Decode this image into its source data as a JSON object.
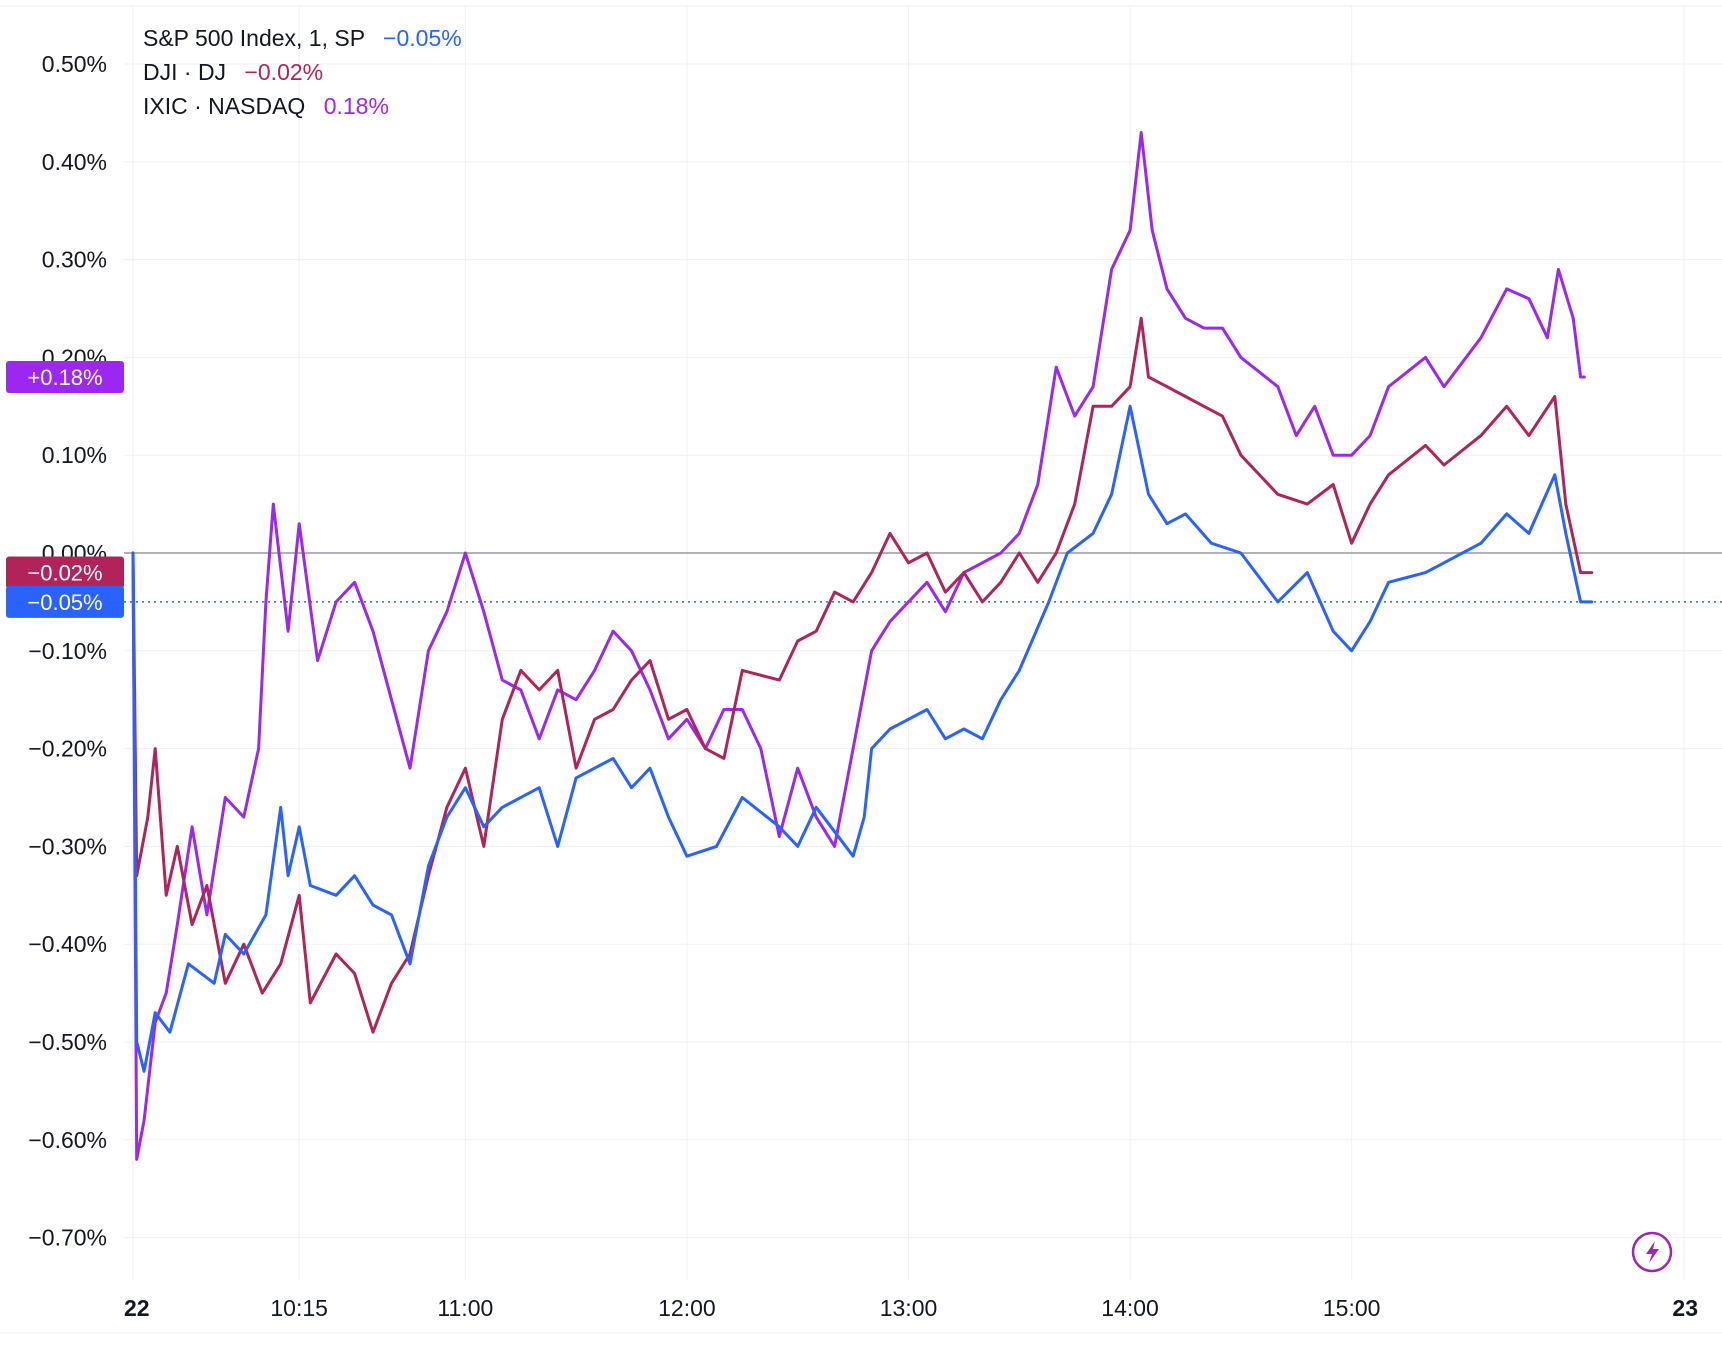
{
  "legend": [
    {
      "name": "S&P 500 Index, 1, SP",
      "value": "−0.05%",
      "color": "#2962ff"
    },
    {
      "name": "DJI · DJ",
      "value": "−0.02%",
      "color": "#b0245a"
    },
    {
      "name": "IXIC · NASDAQ",
      "value": "0.18%",
      "color": "#9c27f0"
    }
  ],
  "tags": [
    {
      "text": "+0.18%",
      "color": "#9c27f0",
      "value": 0.18
    },
    {
      "text": "−0.02%",
      "color": "#b0245a",
      "value": -0.02
    },
    {
      "text": "−0.05%",
      "color": "#2962ff",
      "value": -0.05
    }
  ],
  "icons": {
    "lightning": "lightning-icon"
  },
  "chart_data": {
    "type": "line",
    "title": "",
    "xlabel": "",
    "ylabel": "",
    "ylim": [
      -0.75,
      0.54
    ],
    "grid": true,
    "legend_position": "top-left",
    "y_ticks": [
      0.5,
      0.4,
      0.3,
      0.2,
      0.1,
      0.0,
      -0.1,
      -0.2,
      -0.3,
      -0.4,
      -0.5,
      -0.6,
      -0.7
    ],
    "y_tick_labels": [
      "0.50%",
      "0.40%",
      "0.30%",
      "0.20%",
      "0.10%",
      "0.00%",
      "−0.10%",
      "−0.20%",
      "−0.30%",
      "−0.40%",
      "−0.50%",
      "−0.60%",
      "−0.70%"
    ],
    "x_ticks": [
      "09:30",
      "10:15",
      "11:00",
      "12:00",
      "13:00",
      "14:00",
      "15:00",
      "16:30"
    ],
    "x_tick_labels": [
      "22",
      "10:15",
      "11:00",
      "12:00",
      "13:00",
      "14:00",
      "15:00",
      "23"
    ],
    "baseline": 0.0,
    "x_range": [
      "09:30",
      "16:30"
    ],
    "series": [
      {
        "name": "S&P 500 Index, 1, SP",
        "color": "#2962ff",
        "points": [
          [
            "09:30",
            0.0
          ],
          [
            "09:31",
            -0.5
          ],
          [
            "09:33",
            -0.53
          ],
          [
            "09:36",
            -0.47
          ],
          [
            "09:40",
            -0.49
          ],
          [
            "09:45",
            -0.42
          ],
          [
            "09:52",
            -0.44
          ],
          [
            "09:55",
            -0.39
          ],
          [
            "10:00",
            -0.41
          ],
          [
            "10:06",
            -0.37
          ],
          [
            "10:10",
            -0.26
          ],
          [
            "10:12",
            -0.33
          ],
          [
            "10:15",
            -0.28
          ],
          [
            "10:18",
            -0.34
          ],
          [
            "10:25",
            -0.35
          ],
          [
            "10:30",
            -0.33
          ],
          [
            "10:35",
            -0.36
          ],
          [
            "10:40",
            -0.37
          ],
          [
            "10:45",
            -0.42
          ],
          [
            "10:50",
            -0.32
          ],
          [
            "10:55",
            -0.27
          ],
          [
            "11:00",
            -0.24
          ],
          [
            "11:05",
            -0.28
          ],
          [
            "11:10",
            -0.26
          ],
          [
            "11:20",
            -0.24
          ],
          [
            "11:25",
            -0.3
          ],
          [
            "11:30",
            -0.23
          ],
          [
            "11:40",
            -0.21
          ],
          [
            "11:45",
            -0.24
          ],
          [
            "11:50",
            -0.22
          ],
          [
            "11:55",
            -0.27
          ],
          [
            "12:00",
            -0.31
          ],
          [
            "12:08",
            -0.3
          ],
          [
            "12:15",
            -0.25
          ],
          [
            "12:25",
            -0.28
          ],
          [
            "12:30",
            -0.3
          ],
          [
            "12:35",
            -0.26
          ],
          [
            "12:45",
            -0.31
          ],
          [
            "12:48",
            -0.27
          ],
          [
            "12:50",
            -0.2
          ],
          [
            "12:55",
            -0.18
          ],
          [
            "13:00",
            -0.17
          ],
          [
            "13:05",
            -0.16
          ],
          [
            "13:10",
            -0.19
          ],
          [
            "13:15",
            -0.18
          ],
          [
            "13:20",
            -0.19
          ],
          [
            "13:25",
            -0.15
          ],
          [
            "13:30",
            -0.12
          ],
          [
            "13:38",
            -0.05
          ],
          [
            "13:43",
            0.0
          ],
          [
            "13:50",
            0.02
          ],
          [
            "13:55",
            0.06
          ],
          [
            "14:00",
            0.15
          ],
          [
            "14:05",
            0.06
          ],
          [
            "14:10",
            0.03
          ],
          [
            "14:15",
            0.04
          ],
          [
            "14:22",
            0.01
          ],
          [
            "14:30",
            0.0
          ],
          [
            "14:40",
            -0.05
          ],
          [
            "14:48",
            -0.02
          ],
          [
            "14:55",
            -0.08
          ],
          [
            "15:00",
            -0.1
          ],
          [
            "15:05",
            -0.07
          ],
          [
            "15:10",
            -0.03
          ],
          [
            "15:20",
            -0.02
          ],
          [
            "15:25",
            -0.01
          ],
          [
            "15:35",
            0.01
          ],
          [
            "15:42",
            0.04
          ],
          [
            "15:48",
            0.02
          ],
          [
            "15:55",
            0.08
          ],
          [
            "15:58",
            0.02
          ],
          [
            "16:02",
            -0.05
          ],
          [
            "16:05",
            -0.05
          ]
        ]
      },
      {
        "name": "DJI · DJ",
        "color": "#b0245a",
        "points": [
          [
            "09:30",
            0.0
          ],
          [
            "09:31",
            -0.33
          ],
          [
            "09:34",
            -0.27
          ],
          [
            "09:36",
            -0.2
          ],
          [
            "09:39",
            -0.35
          ],
          [
            "09:42",
            -0.3
          ],
          [
            "09:46",
            -0.38
          ],
          [
            "09:50",
            -0.34
          ],
          [
            "09:55",
            -0.44
          ],
          [
            "10:00",
            -0.4
          ],
          [
            "10:05",
            -0.45
          ],
          [
            "10:10",
            -0.42
          ],
          [
            "10:15",
            -0.35
          ],
          [
            "10:18",
            -0.46
          ],
          [
            "10:25",
            -0.41
          ],
          [
            "10:30",
            -0.43
          ],
          [
            "10:35",
            -0.49
          ],
          [
            "10:40",
            -0.44
          ],
          [
            "10:45",
            -0.41
          ],
          [
            "10:50",
            -0.33
          ],
          [
            "10:55",
            -0.26
          ],
          [
            "11:00",
            -0.22
          ],
          [
            "11:05",
            -0.3
          ],
          [
            "11:10",
            -0.17
          ],
          [
            "11:15",
            -0.12
          ],
          [
            "11:20",
            -0.14
          ],
          [
            "11:25",
            -0.12
          ],
          [
            "11:30",
            -0.22
          ],
          [
            "11:35",
            -0.17
          ],
          [
            "11:40",
            -0.16
          ],
          [
            "11:45",
            -0.13
          ],
          [
            "11:50",
            -0.11
          ],
          [
            "11:55",
            -0.17
          ],
          [
            "12:00",
            -0.16
          ],
          [
            "12:05",
            -0.2
          ],
          [
            "12:10",
            -0.21
          ],
          [
            "12:15",
            -0.12
          ],
          [
            "12:25",
            -0.13
          ],
          [
            "12:30",
            -0.09
          ],
          [
            "12:35",
            -0.08
          ],
          [
            "12:40",
            -0.04
          ],
          [
            "12:45",
            -0.05
          ],
          [
            "12:50",
            -0.02
          ],
          [
            "12:55",
            0.02
          ],
          [
            "13:00",
            -0.01
          ],
          [
            "13:05",
            0.0
          ],
          [
            "13:10",
            -0.04
          ],
          [
            "13:15",
            -0.02
          ],
          [
            "13:20",
            -0.05
          ],
          [
            "13:25",
            -0.03
          ],
          [
            "13:30",
            0.0
          ],
          [
            "13:35",
            -0.03
          ],
          [
            "13:40",
            0.0
          ],
          [
            "13:45",
            0.05
          ],
          [
            "13:50",
            0.15
          ],
          [
            "13:55",
            0.15
          ],
          [
            "14:00",
            0.17
          ],
          [
            "14:03",
            0.24
          ],
          [
            "14:05",
            0.18
          ],
          [
            "14:10",
            0.17
          ],
          [
            "14:15",
            0.16
          ],
          [
            "14:20",
            0.15
          ],
          [
            "14:25",
            0.14
          ],
          [
            "14:30",
            0.1
          ],
          [
            "14:40",
            0.06
          ],
          [
            "14:48",
            0.05
          ],
          [
            "14:55",
            0.07
          ],
          [
            "15:00",
            0.01
          ],
          [
            "15:05",
            0.05
          ],
          [
            "15:10",
            0.08
          ],
          [
            "15:20",
            0.11
          ],
          [
            "15:25",
            0.09
          ],
          [
            "15:35",
            0.12
          ],
          [
            "15:42",
            0.15
          ],
          [
            "15:48",
            0.12
          ],
          [
            "15:55",
            0.16
          ],
          [
            "15:58",
            0.05
          ],
          [
            "16:02",
            -0.02
          ],
          [
            "16:05",
            -0.02
          ]
        ]
      },
      {
        "name": "IXIC · NASDAQ",
        "color": "#9c27f0",
        "points": [
          [
            "09:30",
            0.0
          ],
          [
            "09:31",
            -0.62
          ],
          [
            "09:33",
            -0.58
          ],
          [
            "09:36",
            -0.48
          ],
          [
            "09:39",
            -0.45
          ],
          [
            "09:42",
            -0.38
          ],
          [
            "09:46",
            -0.28
          ],
          [
            "09:50",
            -0.37
          ],
          [
            "09:55",
            -0.25
          ],
          [
            "10:00",
            -0.27
          ],
          [
            "10:04",
            -0.2
          ],
          [
            "10:06",
            -0.05
          ],
          [
            "10:08",
            0.05
          ],
          [
            "10:12",
            -0.08
          ],
          [
            "10:15",
            0.03
          ],
          [
            "10:20",
            -0.11
          ],
          [
            "10:25",
            -0.05
          ],
          [
            "10:30",
            -0.03
          ],
          [
            "10:35",
            -0.08
          ],
          [
            "10:40",
            -0.15
          ],
          [
            "10:45",
            -0.22
          ],
          [
            "10:50",
            -0.1
          ],
          [
            "10:55",
            -0.06
          ],
          [
            "11:00",
            0.0
          ],
          [
            "11:05",
            -0.06
          ],
          [
            "11:10",
            -0.13
          ],
          [
            "11:15",
            -0.14
          ],
          [
            "11:20",
            -0.19
          ],
          [
            "11:25",
            -0.14
          ],
          [
            "11:30",
            -0.15
          ],
          [
            "11:35",
            -0.12
          ],
          [
            "11:40",
            -0.08
          ],
          [
            "11:45",
            -0.1
          ],
          [
            "11:50",
            -0.14
          ],
          [
            "11:55",
            -0.19
          ],
          [
            "12:00",
            -0.17
          ],
          [
            "12:05",
            -0.2
          ],
          [
            "12:10",
            -0.16
          ],
          [
            "12:15",
            -0.16
          ],
          [
            "12:20",
            -0.2
          ],
          [
            "12:25",
            -0.29
          ],
          [
            "12:30",
            -0.22
          ],
          [
            "12:35",
            -0.27
          ],
          [
            "12:40",
            -0.3
          ],
          [
            "12:45",
            -0.2
          ],
          [
            "12:50",
            -0.1
          ],
          [
            "12:55",
            -0.07
          ],
          [
            "13:00",
            -0.05
          ],
          [
            "13:05",
            -0.03
          ],
          [
            "13:10",
            -0.06
          ],
          [
            "13:15",
            -0.02
          ],
          [
            "13:20",
            -0.01
          ],
          [
            "13:25",
            0.0
          ],
          [
            "13:30",
            0.02
          ],
          [
            "13:35",
            0.07
          ],
          [
            "13:40",
            0.19
          ],
          [
            "13:45",
            0.14
          ],
          [
            "13:50",
            0.17
          ],
          [
            "13:55",
            0.29
          ],
          [
            "14:00",
            0.33
          ],
          [
            "14:03",
            0.43
          ],
          [
            "14:06",
            0.33
          ],
          [
            "14:10",
            0.27
          ],
          [
            "14:15",
            0.24
          ],
          [
            "14:20",
            0.23
          ],
          [
            "14:25",
            0.23
          ],
          [
            "14:30",
            0.2
          ],
          [
            "14:40",
            0.17
          ],
          [
            "14:45",
            0.12
          ],
          [
            "14:50",
            0.15
          ],
          [
            "14:55",
            0.1
          ],
          [
            "15:00",
            0.1
          ],
          [
            "15:05",
            0.12
          ],
          [
            "15:10",
            0.17
          ],
          [
            "15:20",
            0.2
          ],
          [
            "15:25",
            0.17
          ],
          [
            "15:35",
            0.22
          ],
          [
            "15:42",
            0.27
          ],
          [
            "15:48",
            0.26
          ],
          [
            "15:53",
            0.22
          ],
          [
            "15:56",
            0.29
          ],
          [
            "16:00",
            0.24
          ],
          [
            "16:02",
            0.18
          ],
          [
            "16:03",
            0.18
          ]
        ]
      }
    ]
  }
}
